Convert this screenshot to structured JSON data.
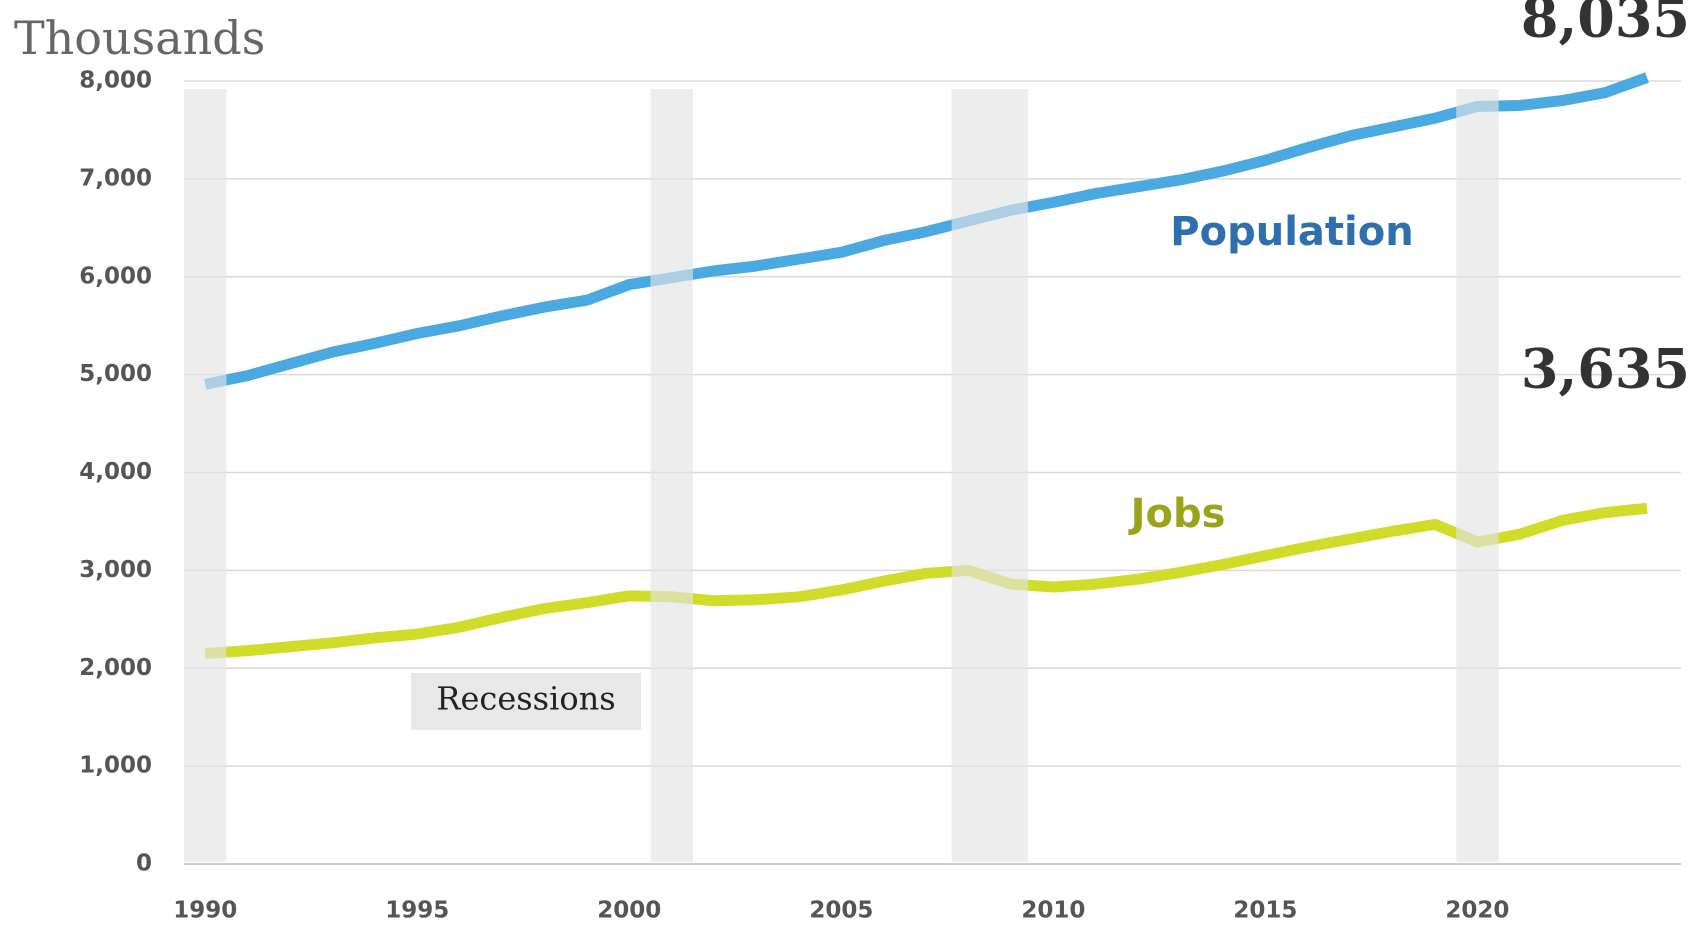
{
  "chart_data": {
    "type": "line",
    "y_axis_label": "Thousands",
    "x": [
      1990,
      1991,
      1992,
      1993,
      1994,
      1995,
      1996,
      1997,
      1998,
      1999,
      2000,
      2001,
      2002,
      2003,
      2004,
      2005,
      2006,
      2007,
      2008,
      2009,
      2010,
      2011,
      2012,
      2013,
      2014,
      2015,
      2016,
      2017,
      2018,
      2019,
      2020,
      2021,
      2022,
      2023,
      2024
    ],
    "series": [
      {
        "name": "Population",
        "color": "#4aa9e1",
        "label_color": "#2e6fae",
        "values": [
          4900,
          4990,
          5110,
          5230,
          5320,
          5420,
          5500,
          5600,
          5690,
          5760,
          5920,
          5990,
          6060,
          6110,
          6180,
          6250,
          6370,
          6460,
          6570,
          6680,
          6760,
          6850,
          6920,
          6990,
          7080,
          7190,
          7320,
          7440,
          7530,
          7620,
          7740,
          7750,
          7800,
          7880,
          8035
        ],
        "value_labels": [
          null,
          null,
          null,
          null,
          null,
          null,
          null,
          null,
          null,
          null,
          null,
          null,
          null,
          null,
          null,
          null,
          null,
          null,
          null,
          null,
          null,
          null,
          null,
          null,
          null,
          null,
          null,
          null,
          null,
          null,
          null,
          null,
          null,
          null,
          "8,035"
        ]
      },
      {
        "name": "Jobs",
        "color": "#cfdc2a",
        "label_color": "#9ba31a",
        "values": [
          2150,
          2180,
          2220,
          2260,
          2310,
          2350,
          2420,
          2520,
          2610,
          2670,
          2740,
          2730,
          2690,
          2700,
          2730,
          2800,
          2890,
          2970,
          3000,
          2860,
          2830,
          2860,
          2910,
          2980,
          3060,
          3150,
          3240,
          3320,
          3400,
          3470,
          3290,
          3370,
          3510,
          3590,
          3635
        ],
        "value_labels": [
          null,
          null,
          null,
          null,
          null,
          null,
          null,
          null,
          null,
          null,
          null,
          null,
          null,
          null,
          null,
          null,
          null,
          null,
          null,
          null,
          null,
          null,
          null,
          null,
          null,
          null,
          null,
          null,
          null,
          null,
          null,
          null,
          null,
          null,
          "3,635"
        ]
      }
    ],
    "recessions": [
      [
        1989.5,
        1990.5
      ],
      [
        2000.5,
        2001.5
      ],
      [
        2007.6,
        2009.4
      ],
      [
        2019.5,
        2020.5
      ]
    ],
    "recession_label": "Recessions",
    "xlim": [
      1989.5,
      2024.8
    ],
    "xticks": [
      1990,
      1995,
      2000,
      2005,
      2010,
      2015,
      2020
    ],
    "ylim": [
      0,
      8000
    ],
    "yticks": [
      0,
      {
        "value": 1000,
        "label": "1,000"
      },
      {
        "value": 2000,
        "label": "2,000"
      },
      {
        "value": 3000,
        "label": "3,000"
      },
      {
        "value": 4000,
        "label": "4,000"
      },
      {
        "value": 5000,
        "label": "5,000"
      },
      {
        "value": 6000,
        "label": "6,000"
      },
      {
        "value": 7000,
        "label": "7,000"
      },
      {
        "value": 8000,
        "label": "8,000"
      }
    ],
    "grid": true
  }
}
